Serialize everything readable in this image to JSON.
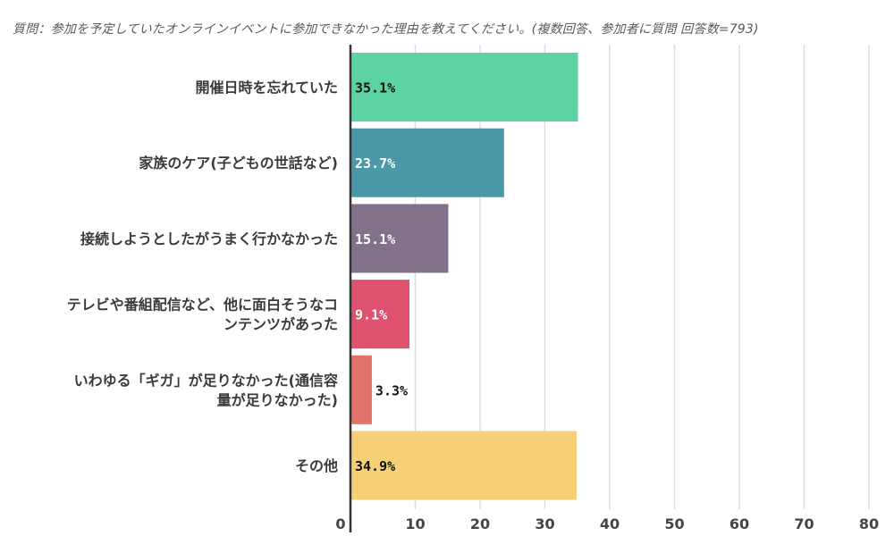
{
  "header": {
    "title": "質問：参加を予定していたオンラインイベントに参加できなかった理由を教えてください。(複数回答、参加者に質問 回答数=793)"
  },
  "colors": {
    "gridline": "#dddddd",
    "axis": "#333333",
    "label_dark": "#111111",
    "label_light": "#ffffff"
  },
  "chart_data": {
    "type": "bar",
    "orientation": "horizontal",
    "title": "質問：参加を予定していたオンラインイベントに参加できなかった理由を教えてください。(複数回答、参加者に質問 回答数=793)",
    "xlabel": "",
    "ylabel": "",
    "xlim": [
      0,
      80
    ],
    "xticks": [
      0,
      10,
      20,
      30,
      40,
      50,
      60,
      70,
      80
    ],
    "grid": true,
    "categories": [
      "開催日時を忘れていた",
      "家族のケア(子どもの世話など)",
      "接続しようとしたがうまく行かなかった",
      "テレビや番組配信など、他に面白そうなコンテンツがあった",
      "いわゆる「ギガ」が足りなかった(通信容量が足りなかった)",
      "その他"
    ],
    "category_lines": [
      [
        "開催日時を忘れていた"
      ],
      [
        "家族のケア(子どもの世話など)"
      ],
      [
        "接続しようとしたがうまく行かなかった"
      ],
      [
        "テレビや番組配信など、他に面白そうなコ",
        "ンテンツがあった"
      ],
      [
        "いわゆる「ギガ」が足りなかった(通信容",
        "量が足りなかった)"
      ],
      [
        "その他"
      ]
    ],
    "values": [
      35.1,
      23.7,
      15.1,
      9.1,
      3.3,
      34.9
    ],
    "value_labels": [
      "35.1%",
      "23.7%",
      "15.1%",
      "9.1%",
      "3.3%",
      "34.9%"
    ],
    "bar_colors": [
      "#5dd3a4",
      "#4a98a8",
      "#817189",
      "#de5270",
      "#e2736a",
      "#f5d076"
    ],
    "label_inside": [
      true,
      true,
      true,
      true,
      false,
      true
    ],
    "label_light": [
      false,
      true,
      true,
      true,
      false,
      false
    ]
  }
}
